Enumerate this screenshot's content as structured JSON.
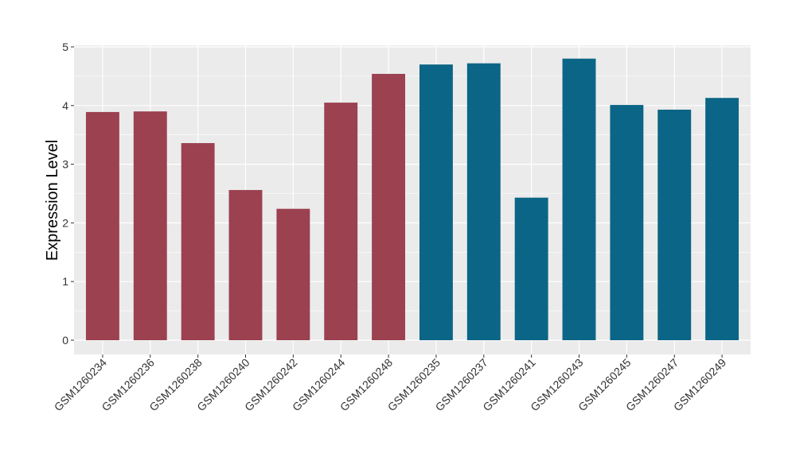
{
  "chart_data": {
    "type": "bar",
    "title": "",
    "xlabel": "",
    "ylabel": "Expression Level",
    "ylim": [
      0,
      5
    ],
    "yticks": [
      0,
      1,
      2,
      3,
      4,
      5
    ],
    "grid": true,
    "categories": [
      "GSM1260234",
      "GSM1260236",
      "GSM1260238",
      "GSM1260240",
      "GSM1260242",
      "GSM1260244",
      "GSM1260248",
      "GSM1260235",
      "GSM1260237",
      "GSM1260241",
      "GSM1260243",
      "GSM1260245",
      "GSM1260247",
      "GSM1260249"
    ],
    "values": [
      3.89,
      3.9,
      3.36,
      2.56,
      2.24,
      4.05,
      4.54,
      4.7,
      4.72,
      2.43,
      4.8,
      4.01,
      3.93,
      4.13
    ],
    "groups": [
      "a",
      "a",
      "a",
      "a",
      "a",
      "a",
      "a",
      "b",
      "b",
      "b",
      "b",
      "b",
      "b",
      "b"
    ],
    "colors": {
      "a": "#9B4150",
      "b": "#0B6586"
    }
  }
}
